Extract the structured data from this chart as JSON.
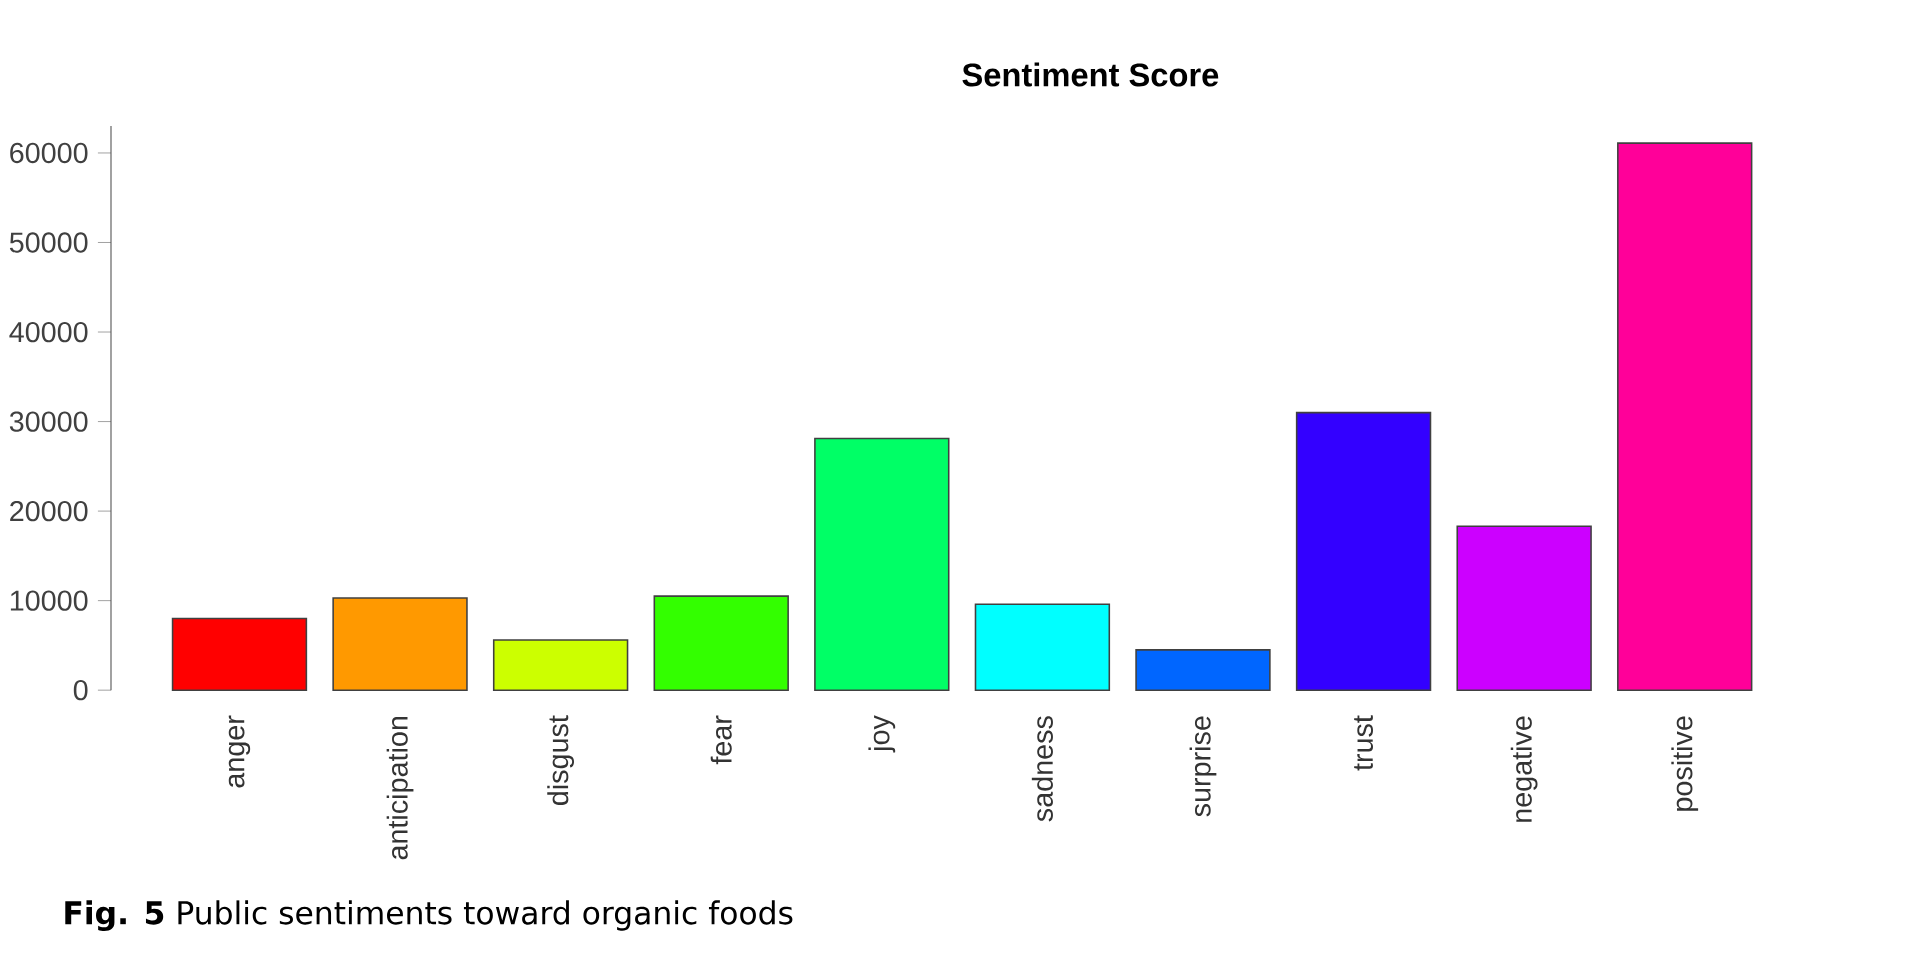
{
  "chart_data": {
    "type": "bar",
    "title": "Sentiment Score",
    "categories": [
      "anger",
      "anticipation",
      "disgust",
      "fear",
      "joy",
      "sadness",
      "surprise",
      "trust",
      "negative",
      "positive"
    ],
    "values": [
      8000,
      10300,
      5600,
      10500,
      28100,
      9600,
      4500,
      31000,
      18300,
      61100
    ],
    "colors": [
      "#ff0000",
      "#ff9900",
      "#ccff00",
      "#33ff00",
      "#00ff66",
      "#00ffff",
      "#0066ff",
      "#3300ff",
      "#cc00ff",
      "#ff0099"
    ],
    "ylim": [
      0,
      63000
    ],
    "yticks": [
      0,
      10000,
      20000,
      30000,
      40000,
      50000,
      60000
    ],
    "annotations": [
      "**Fig. 5** Public sentiments toward organic foods"
    ]
  }
}
